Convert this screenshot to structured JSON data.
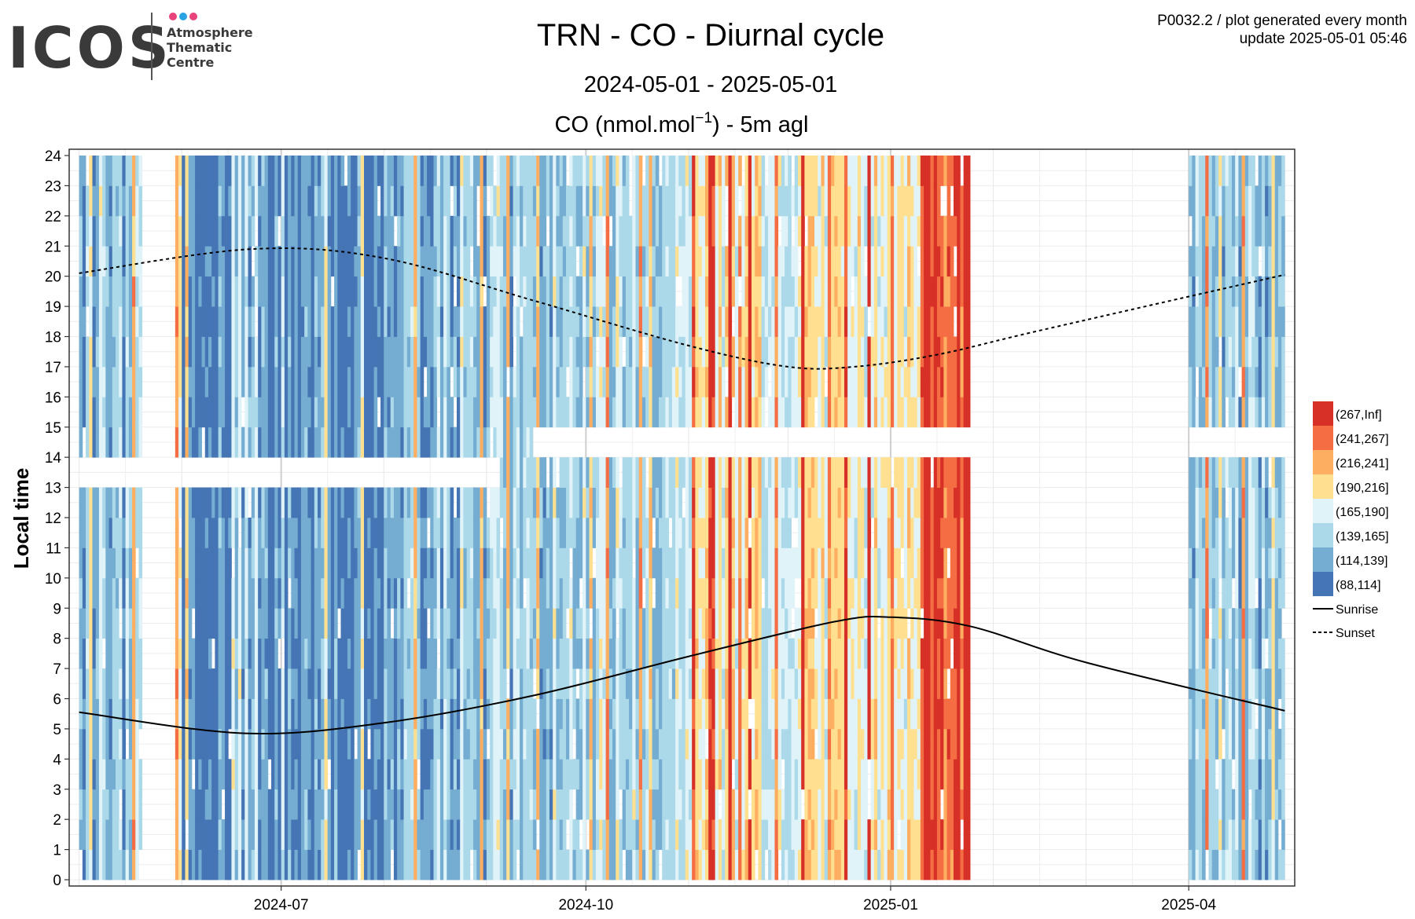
{
  "logo": {
    "word": "ICOS",
    "lines": [
      "Atmosphere",
      "Thematic",
      "Centre"
    ],
    "dots": [
      "#e8437a",
      "#2aa3e4",
      "#e8437a"
    ]
  },
  "header": {
    "title": "TRN - CO - Diurnal cycle",
    "period": "2024-05-01 - 2025-05-01",
    "subtitle_main": "CO (nmol.mol",
    "subtitle_sup": "−1",
    "subtitle_rest": ") - 5m agl",
    "info_line1": "P0032.2 / plot generated every month",
    "info_line2": "update  2025-05-01 05:46"
  },
  "chart_data": {
    "type": "heatmap",
    "title": "TRN - CO - Diurnal cycle",
    "period": "2024-05-01 - 2025-05-01",
    "ylabel": "Local time",
    "xlabel": "",
    "x_range": [
      "2024-05-01",
      "2025-04-30"
    ],
    "ylim": [
      0,
      24
    ],
    "x_ticks": [
      "2024-07",
      "2024-10",
      "2025-01",
      "2025-04"
    ],
    "x_tick_dates": [
      "2024-07-01",
      "2024-10-01",
      "2025-01-01",
      "2025-04-01"
    ],
    "y_ticks": [
      0,
      1,
      2,
      3,
      4,
      5,
      6,
      7,
      8,
      9,
      10,
      11,
      12,
      13,
      14,
      15,
      16,
      17,
      18,
      19,
      20,
      21,
      22,
      23,
      24
    ],
    "grid": true,
    "legend_position": "right",
    "color_bins": [
      {
        "label": "(267,Inf]",
        "color": "#d73027"
      },
      {
        "label": "(241,267]",
        "color": "#f46d43"
      },
      {
        "label": "(216,241]",
        "color": "#fdae61"
      },
      {
        "label": "(190,216]",
        "color": "#fee090"
      },
      {
        "label": "(165,190]",
        "color": "#e0f3f8"
      },
      {
        "label": "(139,165]",
        "color": "#abd9e9"
      },
      {
        "label": "(114,139]",
        "color": "#74add1"
      },
      {
        "label": "(88,114]",
        "color": "#4575b4"
      }
    ],
    "lines": [
      {
        "name": "Sunrise",
        "style": "solid",
        "points": [
          [
            "2024-05-01",
            5.55
          ],
          [
            "2024-06-20",
            4.85
          ],
          [
            "2024-08-01",
            5.2
          ],
          [
            "2024-09-15",
            6.1
          ],
          [
            "2024-11-01",
            7.4
          ],
          [
            "2024-12-15",
            8.55
          ],
          [
            "2025-01-01",
            8.7
          ],
          [
            "2025-01-25",
            8.4
          ],
          [
            "2025-03-01",
            7.2
          ],
          [
            "2025-04-30",
            5.6
          ]
        ]
      },
      {
        "name": "Sunset",
        "style": "dashed",
        "points": [
          [
            "2024-05-01",
            20.1
          ],
          [
            "2024-06-22",
            20.9
          ],
          [
            "2024-08-01",
            20.6
          ],
          [
            "2024-09-15",
            19.2
          ],
          [
            "2024-11-01",
            17.7
          ],
          [
            "2024-12-01",
            17.0
          ],
          [
            "2024-12-21",
            17.0
          ],
          [
            "2025-01-15",
            17.4
          ],
          [
            "2025-02-15",
            18.2
          ],
          [
            "2025-04-30",
            20.05
          ]
        ]
      }
    ],
    "data_gaps": [
      {
        "from": "2024-05-20",
        "to": "2024-05-30",
        "hours": [
          0,
          24
        ]
      },
      {
        "from": "2025-01-25",
        "to": "2025-04-01",
        "hours": [
          0,
          24
        ]
      },
      {
        "from": "2024-05-01",
        "to": "2024-09-05",
        "hours": [
          13,
          14
        ]
      },
      {
        "from": "2024-09-15",
        "to": "2025-01-25",
        "hours": [
          14,
          15
        ]
      },
      {
        "from": "2025-04-01",
        "to": "2025-04-30",
        "hours": [
          14,
          15
        ]
      }
    ],
    "value_pattern_nmol_mol": [
      {
        "from": "2024-05-01",
        "to": "2024-06-01",
        "typical": 135
      },
      {
        "from": "2024-06-01",
        "to": "2024-08-01",
        "typical": 112
      },
      {
        "from": "2024-08-01",
        "to": "2024-09-01",
        "typical": 135
      },
      {
        "from": "2024-09-01",
        "to": "2024-10-01",
        "typical": 150
      },
      {
        "from": "2024-10-01",
        "to": "2024-11-01",
        "typical": 160
      },
      {
        "from": "2024-11-01",
        "to": "2024-12-01",
        "typical": 190
      },
      {
        "from": "2024-12-01",
        "to": "2025-01-10",
        "typical": 190
      },
      {
        "from": "2025-01-10",
        "to": "2025-01-25",
        "typical": 260
      },
      {
        "from": "2025-04-01",
        "to": "2025-04-30",
        "typical": 140
      }
    ]
  },
  "legend": {
    "bins": [
      "(267,Inf]",
      "(241,267]",
      "(216,241]",
      "(190,216]",
      "(165,190]",
      "(139,165]",
      "(114,139]",
      "(88,114]"
    ],
    "lines": [
      "Sunrise",
      "Sunset"
    ]
  }
}
